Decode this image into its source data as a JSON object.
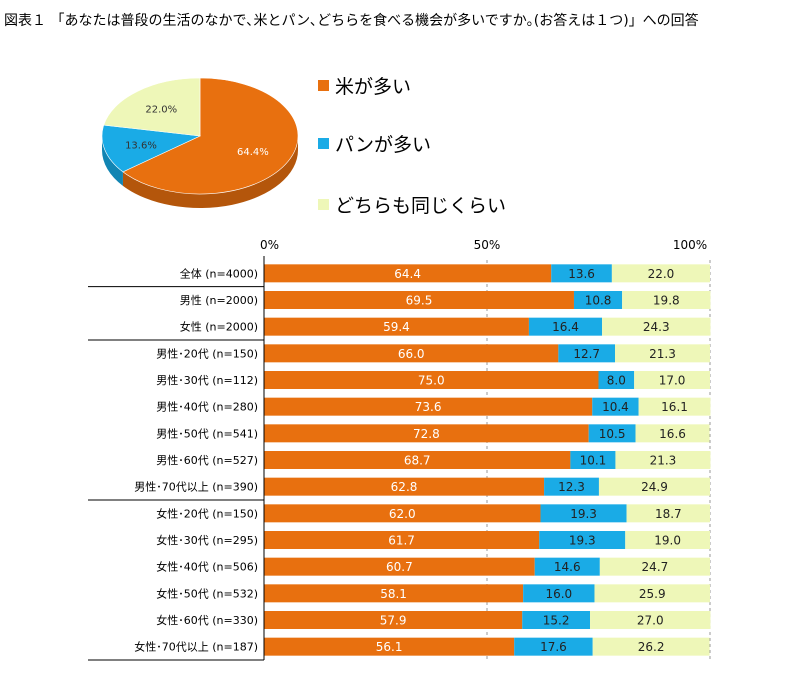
{
  "title": "図表１ 「あなたは普段の生活のなかで､米とパン､どちらを食べる機会が多いですか｡(お答えは１つ)」への回答",
  "colors": {
    "rice": "#e8700f",
    "bread": "#1aabe6",
    "both": "#eef7b8"
  },
  "legend": [
    {
      "label": "米が多い",
      "color": "#e8700f"
    },
    {
      "label": "パンが多い",
      "color": "#1aabe6"
    },
    {
      "label": "どちらも同じくらい",
      "color": "#eef7b8"
    }
  ],
  "chart_data": [
    {
      "type": "pie",
      "title": "",
      "series": [
        {
          "name": "米が多い",
          "value": 64.4,
          "label": "64.4%"
        },
        {
          "name": "パンが多い",
          "value": 13.6,
          "label": "13.6%"
        },
        {
          "name": "どちらも同じくらい",
          "value": 22.0,
          "label": "22.0%"
        }
      ]
    },
    {
      "type": "bar",
      "orientation": "horizontal",
      "stacked": true,
      "xlim": [
        0,
        100
      ],
      "xticks": [
        "0%",
        "50%",
        "100%"
      ],
      "categories": [
        "全体 (n=4000)",
        "男性 (n=2000)",
        "女性 (n=2000)",
        "男性･20代 (n=150)",
        "男性･30代 (n=112)",
        "男性･40代 (n=280)",
        "男性･50代 (n=541)",
        "男性･60代 (n=527)",
        "男性･70代以上 (n=390)",
        "女性･20代 (n=150)",
        "女性･30代 (n=295)",
        "女性･40代 (n=506)",
        "女性･50代 (n=532)",
        "女性･60代 (n=330)",
        "女性･70代以上 (n=187)"
      ],
      "groups_end_after": [
        0,
        2,
        8
      ],
      "series": [
        {
          "name": "米が多い",
          "values": [
            64.4,
            69.5,
            59.4,
            66.0,
            75.0,
            73.6,
            72.8,
            68.7,
            62.8,
            62.0,
            61.7,
            60.7,
            58.1,
            57.9,
            56.1
          ],
          "labels": [
            "64.4",
            "69.5",
            "59.4",
            "66.0",
            "75.0",
            "73.6",
            "72.8",
            "68.7",
            "62.8",
            "62.0",
            "61.7",
            "60.7",
            "58.1",
            "57.9",
            "56.1"
          ]
        },
        {
          "name": "パンが多い",
          "values": [
            13.6,
            10.8,
            16.4,
            12.7,
            8.0,
            10.4,
            10.5,
            10.1,
            12.3,
            19.3,
            19.3,
            14.6,
            16.0,
            15.2,
            17.6
          ],
          "labels": [
            "13.6",
            "10.8",
            "16.4",
            "12.7",
            "8.0",
            "10.4",
            "10.5",
            "10.1",
            "12.3",
            "19.3",
            "19.3",
            "14.6",
            "16.0",
            "15.2",
            "17.6"
          ]
        },
        {
          "name": "どちらも同じくらい",
          "values": [
            22.0,
            19.8,
            24.3,
            21.3,
            17.0,
            16.1,
            16.6,
            21.3,
            24.9,
            18.7,
            19.0,
            24.7,
            25.9,
            27.0,
            26.2
          ],
          "labels": [
            "22.0",
            "19.8",
            "24.3",
            "21.3",
            "17.0",
            "16.1",
            "16.6",
            "21.3",
            "24.9",
            "18.7",
            "19.0",
            "24.7",
            "25.9",
            "27.0",
            "26.2"
          ]
        }
      ]
    }
  ]
}
